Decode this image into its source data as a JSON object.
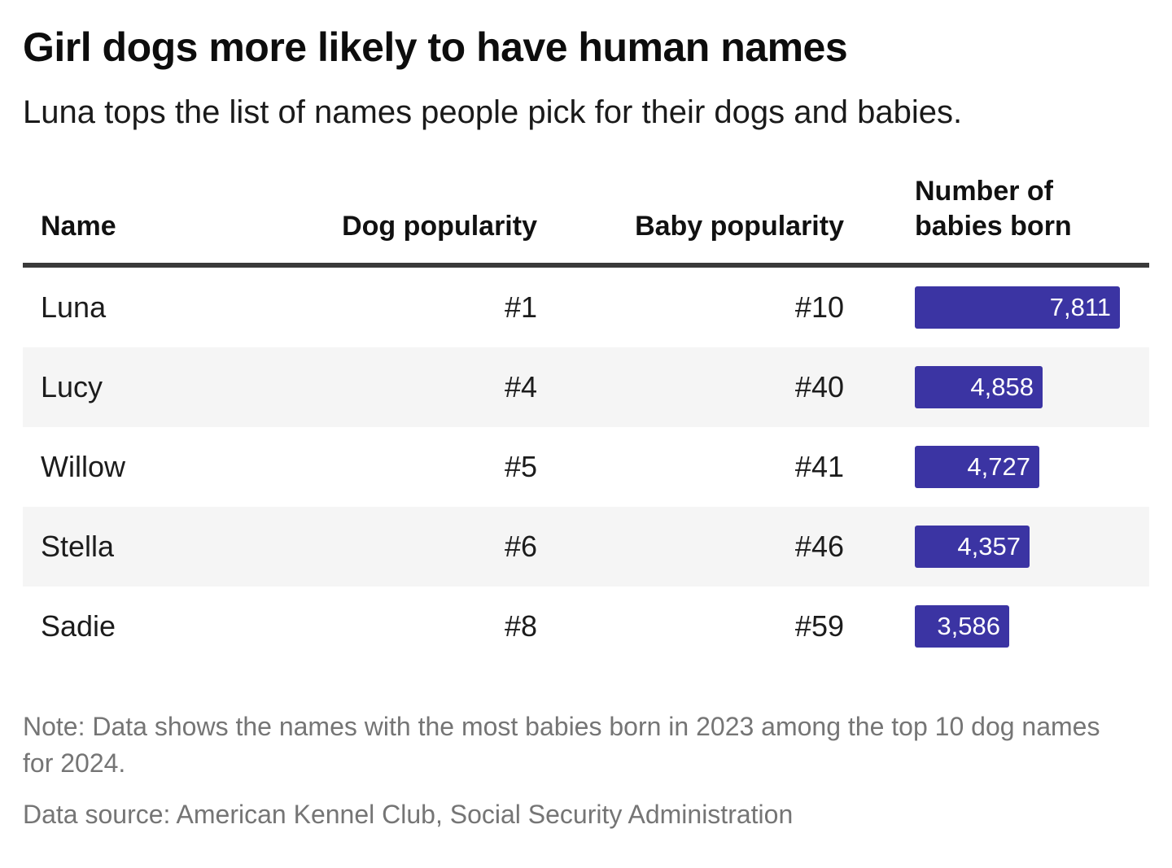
{
  "chart_data": {
    "type": "table",
    "title": "Girl dogs more likely to have human names",
    "subtitle": "Luna tops the list of names people pick for their dogs and babies.",
    "columns": {
      "name": "Name",
      "dog": "Dog popularity",
      "baby": "Baby popularity",
      "babies_born": "Number of babies born"
    },
    "bar_series": {
      "embedded_in_column": "Number of babies born",
      "style": "bar",
      "max_value": 7811
    },
    "rows": [
      {
        "name": "Luna",
        "dog_rank": "#1",
        "baby_rank": "#10",
        "babies_born": 7811,
        "babies_born_label": "7,811"
      },
      {
        "name": "Lucy",
        "dog_rank": "#4",
        "baby_rank": "#40",
        "babies_born": 4858,
        "babies_born_label": "4,858"
      },
      {
        "name": "Willow",
        "dog_rank": "#5",
        "baby_rank": "#41",
        "babies_born": 4727,
        "babies_born_label": "4,727"
      },
      {
        "name": "Stella",
        "dog_rank": "#6",
        "baby_rank": "#46",
        "babies_born": 4357,
        "babies_born_label": "4,357"
      },
      {
        "name": "Sadie",
        "dog_rank": "#8",
        "baby_rank": "#59",
        "babies_born": 3586,
        "babies_born_label": "3,586"
      }
    ],
    "note": "Note: Data shows the names with the most babies born in 2023 among the top 10 dog names for 2024.",
    "source": "Data source: American Kennel Club, Social Security Administration"
  },
  "colors": {
    "bar": "#3b34a3",
    "stripe": "#f5f5f5",
    "rule": "#3a3a3a",
    "note_text": "#757575"
  }
}
